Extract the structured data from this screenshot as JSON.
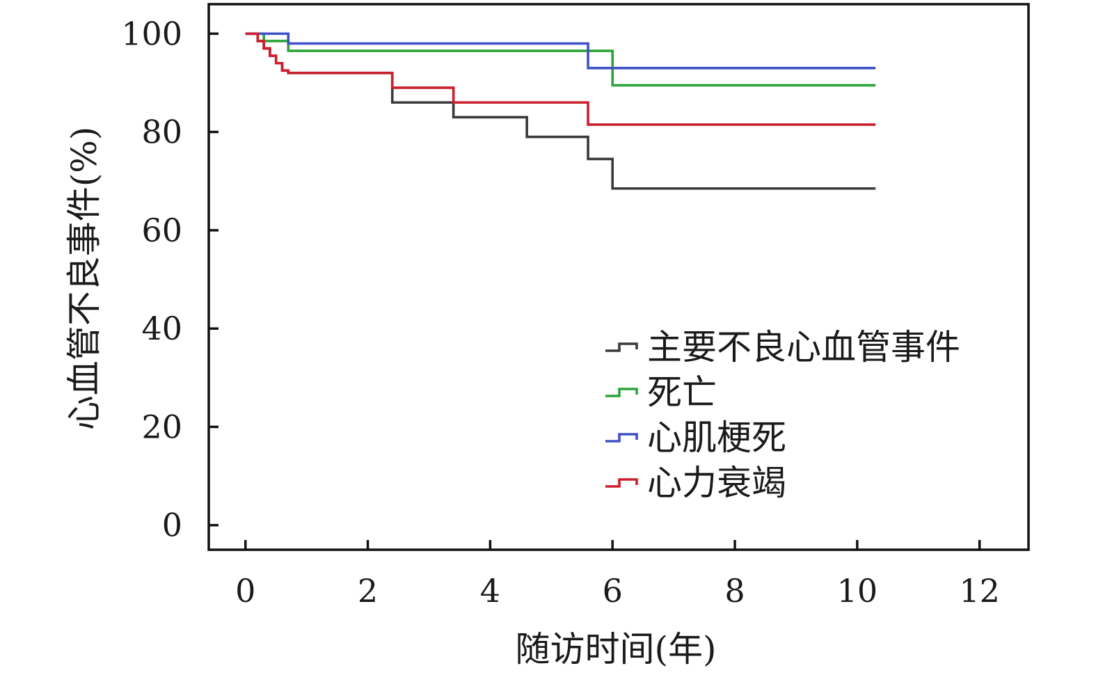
{
  "chart_data": {
    "type": "line",
    "step": true,
    "xlabel": "随访时间(年)",
    "ylabel": "心血管不良事件(%)",
    "xlim": [
      -0.6,
      12.8
    ],
    "ylim": [
      -5,
      106
    ],
    "xticks": [
      0,
      2,
      4,
      6,
      8,
      10,
      12
    ],
    "yticks": [
      0,
      20,
      40,
      60,
      80,
      100
    ],
    "legend_position": "lower-right",
    "grid": false,
    "series": [
      {
        "name": "主要不良心血管事件",
        "color": "#3a3a3a",
        "x": [
          0.0,
          0.2,
          0.3,
          0.4,
          0.5,
          0.6,
          0.7,
          2.4,
          3.4,
          4.6,
          5.6,
          6.0,
          10.3
        ],
        "y": [
          100,
          98.5,
          97,
          95.5,
          94,
          92.5,
          92,
          86,
          83,
          79,
          74.5,
          68.5,
          68.5
        ]
      },
      {
        "name": "死亡",
        "color": "#2ca43a",
        "x": [
          0.0,
          0.3,
          0.7,
          6.0,
          10.3
        ],
        "y": [
          100,
          98.5,
          96.5,
          89.5,
          89.5
        ]
      },
      {
        "name": "心肌梗死",
        "color": "#4050c8",
        "x": [
          0.0,
          0.7,
          5.6,
          10.3
        ],
        "y": [
          100,
          98,
          93,
          93
        ]
      },
      {
        "name": "心力衰竭",
        "color": "#cc1e2c",
        "x": [
          0.0,
          0.2,
          0.3,
          0.4,
          0.5,
          0.6,
          0.7,
          2.4,
          3.4,
          5.6,
          10.3
        ],
        "y": [
          100,
          98.5,
          97,
          95.5,
          94,
          92.5,
          92,
          89,
          86,
          81.5,
          81.5
        ]
      }
    ]
  }
}
